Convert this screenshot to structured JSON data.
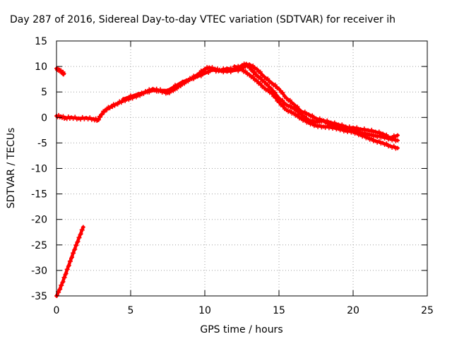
{
  "chart_data": {
    "type": "scatter",
    "title": "Day 287 of 2016, Sidereal Day-to-day VTEC variation (SDTVAR) for receiver ih",
    "xlabel": "GPS time / hours",
    "ylabel": "SDTVAR / TECUs",
    "xlim": [
      0,
      25
    ],
    "ylim": [
      -35,
      15
    ],
    "xticks": [
      0,
      5,
      10,
      15,
      20,
      25
    ],
    "yticks": [
      15,
      10,
      5,
      0,
      -5,
      -10,
      -15,
      -20,
      -25,
      -30,
      -35
    ],
    "grid": true,
    "series_color": "#ff0000",
    "series": [
      {
        "segment": "main-trace",
        "points": [
          [
            0.0,
            0.3
          ],
          [
            0.3,
            0.2
          ],
          [
            0.6,
            -0.1
          ],
          [
            1.0,
            0.0
          ],
          [
            1.5,
            -0.2
          ],
          [
            2.0,
            -0.1
          ],
          [
            2.5,
            -0.3
          ],
          [
            2.8,
            -0.5
          ],
          [
            3.0,
            0.5
          ],
          [
            3.3,
            1.5
          ],
          [
            3.7,
            2.2
          ],
          [
            4.0,
            2.6
          ],
          [
            4.5,
            3.3
          ],
          [
            5.0,
            3.8
          ],
          [
            5.5,
            4.3
          ],
          [
            6.0,
            5.0
          ],
          [
            6.5,
            5.6
          ],
          [
            7.0,
            5.2
          ],
          [
            7.5,
            4.8
          ],
          [
            8.0,
            5.6
          ],
          [
            8.5,
            6.6
          ],
          [
            9.0,
            7.5
          ],
          [
            9.5,
            8.4
          ],
          [
            10.0,
            9.5
          ],
          [
            10.3,
            9.8
          ],
          [
            10.7,
            9.5
          ],
          [
            11.0,
            9.2
          ],
          [
            11.5,
            9.6
          ],
          [
            12.0,
            9.4
          ],
          [
            12.5,
            10.2
          ],
          [
            12.8,
            10.5
          ],
          [
            13.2,
            9.2
          ],
          [
            13.5,
            8.3
          ],
          [
            14.0,
            7.0
          ],
          [
            14.5,
            5.6
          ],
          [
            15.0,
            3.8
          ],
          [
            15.5,
            2.5
          ],
          [
            16.0,
            1.8
          ],
          [
            16.5,
            0.6
          ],
          [
            17.0,
            -0.5
          ],
          [
            17.5,
            -0.9
          ],
          [
            18.0,
            -0.6
          ],
          [
            18.5,
            -1.0
          ],
          [
            19.0,
            -1.4
          ],
          [
            19.5,
            -1.8
          ],
          [
            20.0,
            -2.4
          ],
          [
            20.5,
            -3.0
          ],
          [
            21.0,
            -3.3
          ],
          [
            21.5,
            -3.6
          ],
          [
            22.0,
            -3.8
          ],
          [
            22.5,
            -4.2
          ],
          [
            23.0,
            -4.5
          ]
        ]
      },
      {
        "segment": "main-trace-b",
        "points": [
          [
            4.5,
            3.6
          ],
          [
            5.5,
            4.6
          ],
          [
            6.5,
            5.3
          ],
          [
            7.5,
            5.3
          ],
          [
            8.5,
            7.0
          ],
          [
            9.5,
            8.0
          ],
          [
            10.5,
            9.3
          ],
          [
            11.5,
            9.0
          ],
          [
            12.5,
            9.4
          ],
          [
            13.0,
            8.4
          ],
          [
            13.5,
            7.2
          ],
          [
            14.0,
            5.8
          ],
          [
            14.5,
            4.8
          ],
          [
            15.0,
            3.0
          ],
          [
            15.5,
            1.5
          ],
          [
            16.0,
            0.8
          ],
          [
            16.5,
            -0.2
          ],
          [
            17.0,
            -1.0
          ],
          [
            17.5,
            -1.6
          ],
          [
            18.0,
            -1.8
          ],
          [
            18.5,
            -1.9
          ],
          [
            19.0,
            -2.2
          ],
          [
            19.5,
            -2.6
          ],
          [
            20.0,
            -2.8
          ],
          [
            20.5,
            -3.4
          ],
          [
            21.0,
            -4.0
          ],
          [
            21.5,
            -4.6
          ],
          [
            22.0,
            -5.0
          ],
          [
            22.5,
            -5.6
          ],
          [
            23.0,
            -6.0
          ]
        ]
      },
      {
        "segment": "main-trace-c",
        "points": [
          [
            12.0,
            10.0
          ],
          [
            12.5,
            9.7
          ],
          [
            13.0,
            10.4
          ],
          [
            13.5,
            9.5
          ],
          [
            14.0,
            8.0
          ],
          [
            14.5,
            6.8
          ],
          [
            15.0,
            5.6
          ],
          [
            15.5,
            3.8
          ],
          [
            16.0,
            2.6
          ],
          [
            16.5,
            1.2
          ],
          [
            17.0,
            0.6
          ],
          [
            17.5,
            -0.2
          ],
          [
            18.0,
            -0.6
          ],
          [
            18.5,
            -1.6
          ],
          [
            19.0,
            -2.0
          ],
          [
            19.5,
            -2.0
          ],
          [
            20.0,
            -2.0
          ],
          [
            20.5,
            -2.3
          ],
          [
            21.0,
            -2.5
          ],
          [
            21.5,
            -2.8
          ],
          [
            22.0,
            -3.2
          ],
          [
            22.5,
            -4.0
          ],
          [
            23.0,
            -3.5
          ]
        ]
      },
      {
        "segment": "early-segment",
        "points": [
          [
            0.0,
            9.6
          ],
          [
            0.2,
            9.3
          ],
          [
            0.4,
            8.8
          ],
          [
            0.5,
            8.6
          ]
        ]
      },
      {
        "segment": "rising-segment",
        "points": [
          [
            0.0,
            -35.0
          ],
          [
            0.2,
            -33.8
          ],
          [
            0.4,
            -32.4
          ],
          [
            0.6,
            -30.8
          ],
          [
            0.8,
            -29.2
          ],
          [
            1.0,
            -27.6
          ],
          [
            1.2,
            -26.0
          ],
          [
            1.4,
            -24.5
          ],
          [
            1.6,
            -23.0
          ],
          [
            1.8,
            -21.5
          ]
        ]
      }
    ]
  }
}
